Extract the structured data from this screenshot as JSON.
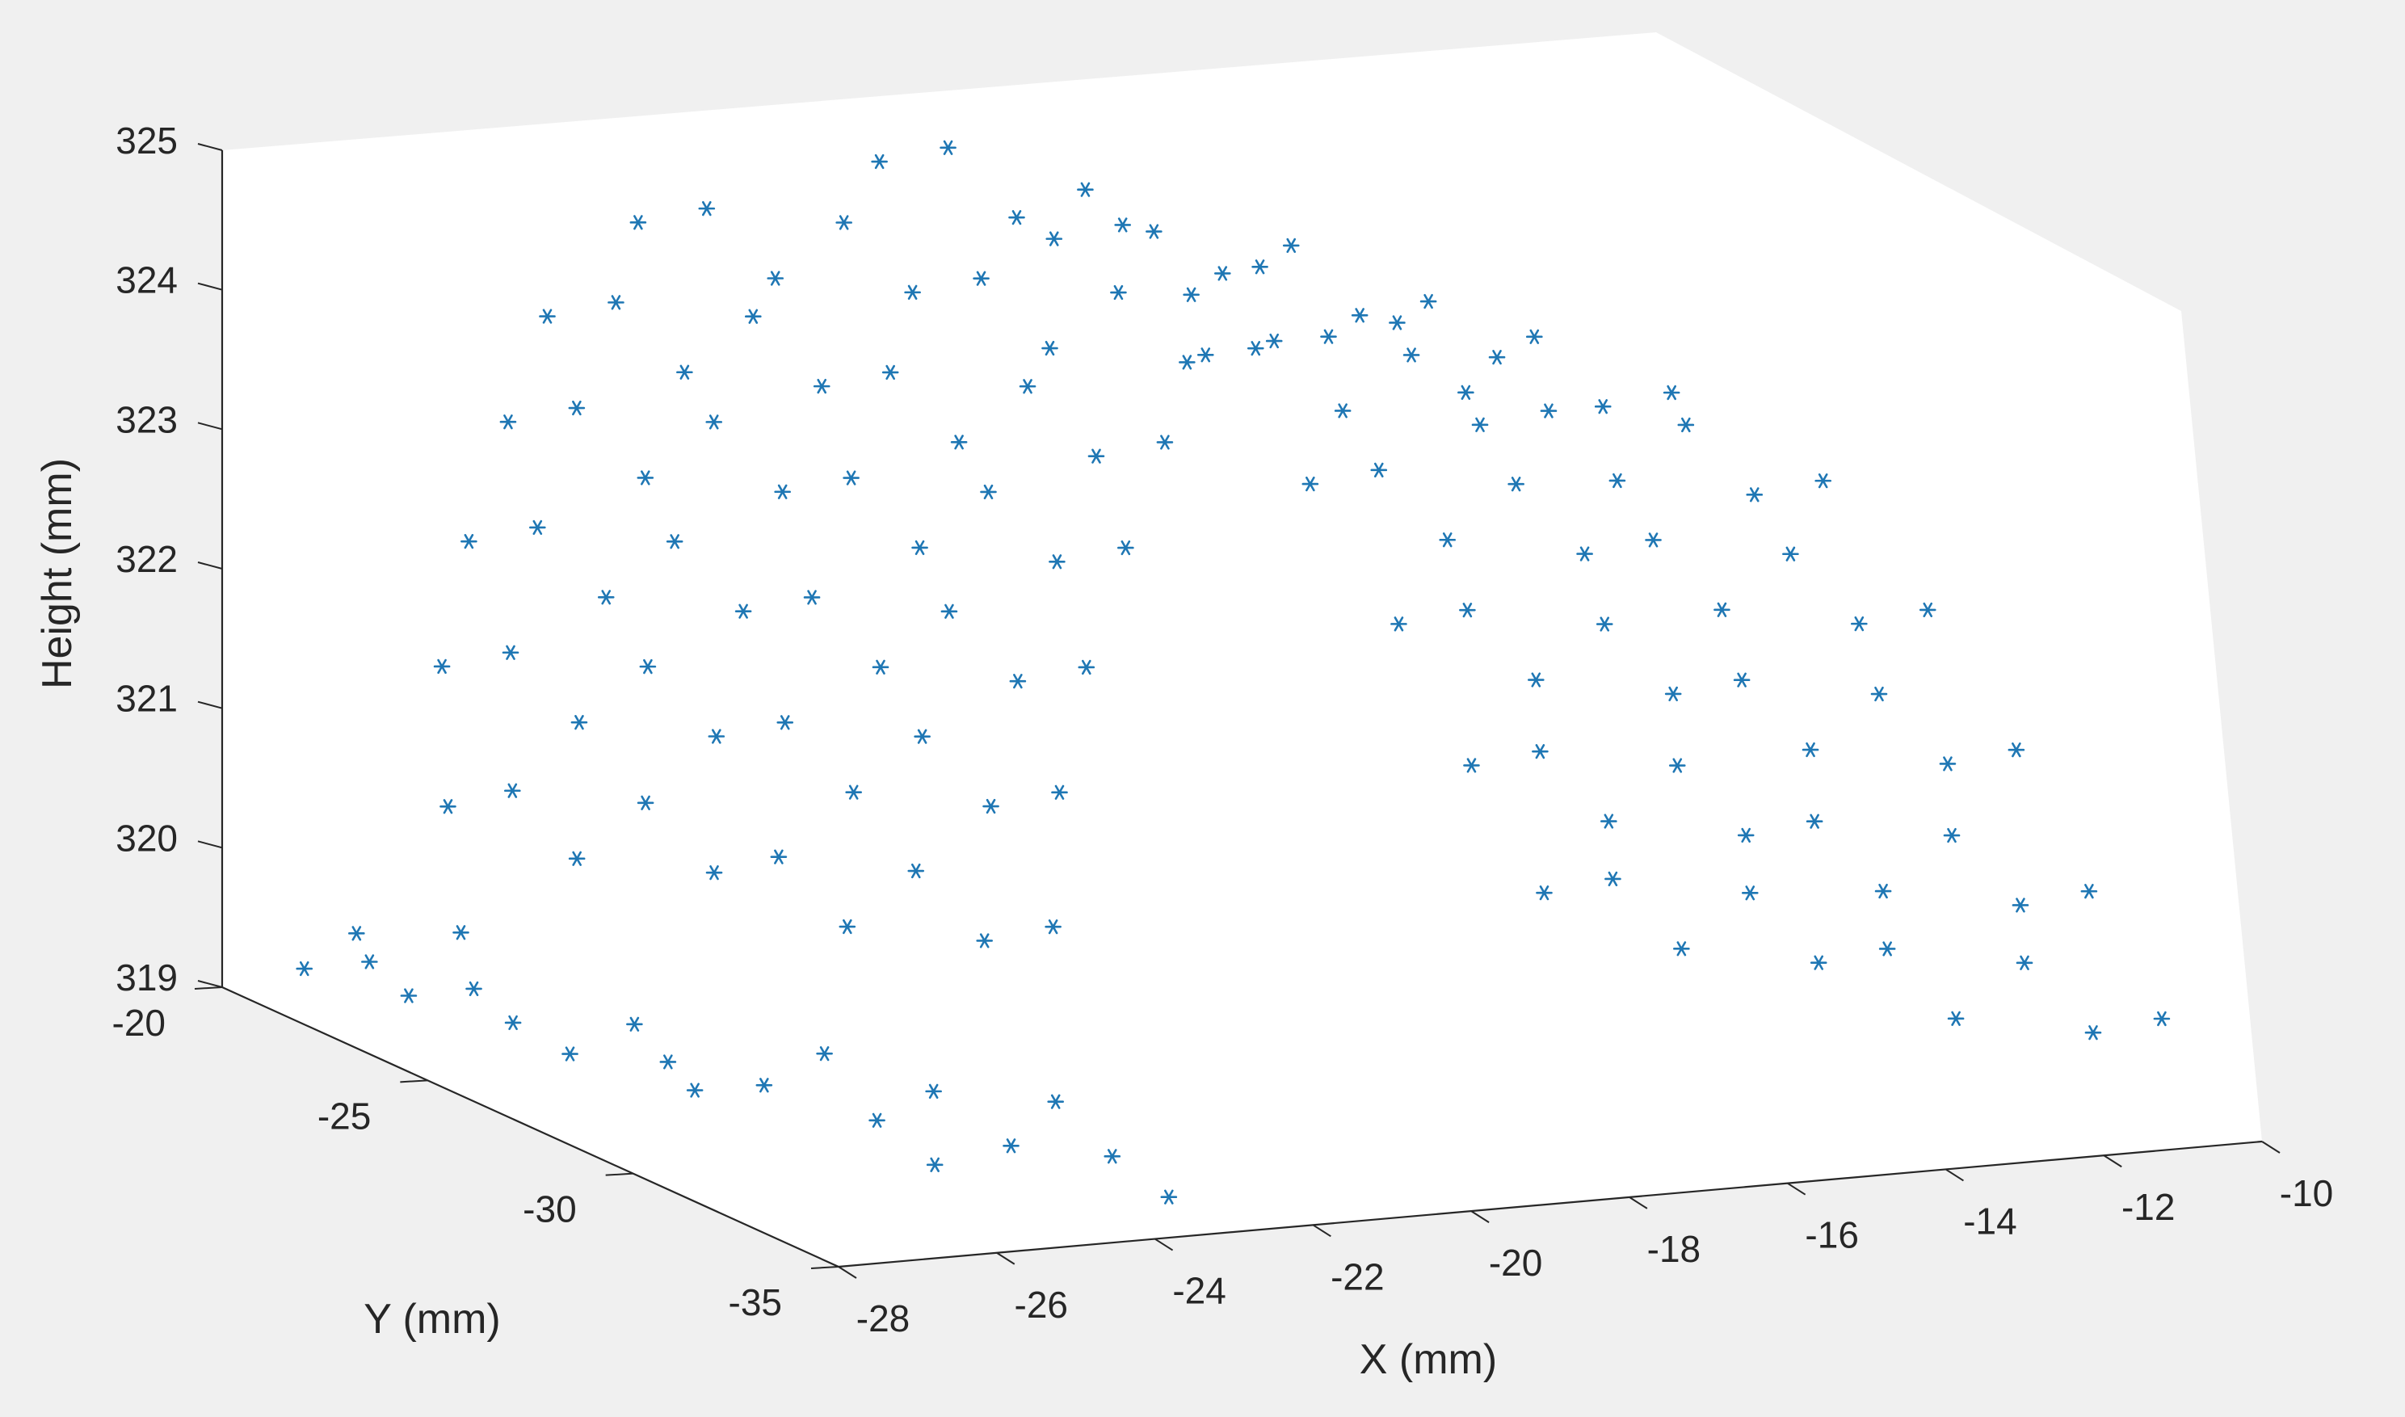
{
  "chart_data": {
    "type": "scatter3d",
    "marker": "asterisk",
    "color": "#1f77b4",
    "background": "#f0f0f0",
    "xlabel": "X (mm)",
    "ylabel": "Y (mm)",
    "zlabel": "Height (mm)",
    "xlim": [
      -28,
      -10
    ],
    "ylim": [
      -35,
      -20
    ],
    "zlim": [
      319,
      325
    ],
    "xticks": [
      -28,
      -26,
      -24,
      -22,
      -20,
      -18,
      -16,
      -14,
      -12,
      -10
    ],
    "yticks": [
      -20,
      -25,
      -30,
      -35
    ],
    "zticks": [
      319,
      320,
      321,
      322,
      323,
      324,
      325
    ],
    "grid": false,
    "points": [
      [
        -28.0,
        -22.0,
        319.4
      ],
      [
        -27.6,
        -22.5,
        319.7
      ],
      [
        -27.2,
        -23.0,
        319.3
      ],
      [
        -26.8,
        -23.5,
        319.8
      ],
      [
        -26.4,
        -24.0,
        319.2
      ],
      [
        -27.8,
        -23.2,
        319.6
      ],
      [
        -27.0,
        -24.2,
        319.5
      ],
      [
        -26.2,
        -25.0,
        319.1
      ],
      [
        -25.8,
        -25.8,
        319.4
      ],
      [
        -25.4,
        -26.5,
        319.0
      ],
      [
        -26.0,
        -27.0,
        319.3
      ],
      [
        -25.2,
        -27.8,
        319.2
      ],
      [
        -24.8,
        -28.5,
        319.5
      ],
      [
        -24.5,
        -29.2,
        319.1
      ],
      [
        -24.2,
        -30.0,
        319.4
      ],
      [
        -24.6,
        -30.8,
        319.0
      ],
      [
        -24.0,
        -31.5,
        319.2
      ],
      [
        -23.8,
        -32.2,
        319.6
      ],
      [
        -23.5,
        -33.0,
        319.3
      ],
      [
        -23.2,
        -33.8,
        319.1
      ],
      [
        -26.6,
        -22.8,
        320.6
      ],
      [
        -26.2,
        -23.6,
        320.8
      ],
      [
        -25.8,
        -24.4,
        320.4
      ],
      [
        -25.4,
        -25.3,
        320.9
      ],
      [
        -25.0,
        -26.2,
        320.5
      ],
      [
        -24.6,
        -27.0,
        320.7
      ],
      [
        -24.2,
        -27.9,
        320.3
      ],
      [
        -23.8,
        -28.8,
        320.8
      ],
      [
        -23.4,
        -29.7,
        320.4
      ],
      [
        -23.0,
        -30.6,
        320.6
      ],
      [
        -26.0,
        -21.5,
        321.4
      ],
      [
        -25.6,
        -22.4,
        321.6
      ],
      [
        -25.2,
        -23.3,
        321.2
      ],
      [
        -24.8,
        -24.2,
        321.7
      ],
      [
        -24.4,
        -25.1,
        321.3
      ],
      [
        -24.0,
        -26.0,
        321.5
      ],
      [
        -23.6,
        -26.9,
        321.1
      ],
      [
        -23.2,
        -27.8,
        321.6
      ],
      [
        -22.8,
        -28.7,
        321.2
      ],
      [
        -22.4,
        -29.6,
        321.4
      ],
      [
        -25.4,
        -21.0,
        322.2
      ],
      [
        -25.0,
        -21.9,
        322.4
      ],
      [
        -24.6,
        -22.8,
        322.0
      ],
      [
        -24.2,
        -23.7,
        322.5
      ],
      [
        -23.8,
        -24.6,
        322.1
      ],
      [
        -23.4,
        -25.5,
        322.3
      ],
      [
        -23.0,
        -26.4,
        321.9
      ],
      [
        -22.6,
        -27.3,
        322.4
      ],
      [
        -22.2,
        -28.2,
        322.0
      ],
      [
        -21.8,
        -29.1,
        322.2
      ],
      [
        -24.8,
        -20.8,
        323.0
      ],
      [
        -24.4,
        -21.7,
        323.2
      ],
      [
        -24.0,
        -22.6,
        322.8
      ],
      [
        -23.6,
        -23.5,
        323.3
      ],
      [
        -23.2,
        -24.4,
        322.9
      ],
      [
        -22.8,
        -25.3,
        323.1
      ],
      [
        -22.4,
        -26.2,
        322.7
      ],
      [
        -22.0,
        -27.1,
        323.2
      ],
      [
        -21.6,
        -28.0,
        322.8
      ],
      [
        -21.2,
        -28.9,
        323.0
      ],
      [
        -24.2,
        -20.6,
        323.7
      ],
      [
        -23.8,
        -21.5,
        323.9
      ],
      [
        -23.4,
        -22.4,
        323.5
      ],
      [
        -23.0,
        -23.3,
        324.0
      ],
      [
        -22.6,
        -24.2,
        323.6
      ],
      [
        -22.2,
        -25.1,
        323.8
      ],
      [
        -21.8,
        -26.0,
        323.4
      ],
      [
        -21.4,
        -26.9,
        323.9
      ],
      [
        -21.0,
        -27.8,
        323.5
      ],
      [
        -20.6,
        -28.7,
        323.7
      ],
      [
        -23.0,
        -20.5,
        324.3
      ],
      [
        -22.6,
        -21.4,
        324.5
      ],
      [
        -22.2,
        -22.3,
        324.1
      ],
      [
        -21.8,
        -23.2,
        324.6
      ],
      [
        -21.4,
        -24.1,
        324.2
      ],
      [
        -21.0,
        -25.0,
        324.4
      ],
      [
        -20.6,
        -25.9,
        324.0
      ],
      [
        -20.2,
        -26.8,
        324.5
      ],
      [
        -19.8,
        -27.7,
        324.1
      ],
      [
        -19.4,
        -28.6,
        324.3
      ],
      [
        -20.0,
        -20.6,
        324.6
      ],
      [
        -19.6,
        -21.5,
        324.8
      ],
      [
        -19.2,
        -22.4,
        324.4
      ],
      [
        -18.8,
        -23.3,
        324.7
      ],
      [
        -18.4,
        -24.2,
        324.5
      ],
      [
        -18.0,
        -25.1,
        324.3
      ],
      [
        -17.6,
        -26.0,
        324.6
      ],
      [
        -17.2,
        -26.9,
        324.2
      ],
      [
        -16.8,
        -27.8,
        324.4
      ],
      [
        -16.4,
        -28.7,
        324.1
      ],
      [
        -18.0,
        -21.0,
        324.0
      ],
      [
        -17.6,
        -21.9,
        324.2
      ],
      [
        -17.2,
        -22.8,
        323.8
      ],
      [
        -16.8,
        -23.7,
        324.1
      ],
      [
        -16.4,
        -24.6,
        323.7
      ],
      [
        -16.0,
        -25.5,
        323.9
      ],
      [
        -15.6,
        -26.4,
        323.5
      ],
      [
        -15.2,
        -27.3,
        324.0
      ],
      [
        -14.8,
        -28.2,
        323.6
      ],
      [
        -14.4,
        -29.1,
        323.8
      ],
      [
        -16.5,
        -21.8,
        323.2
      ],
      [
        -16.1,
        -22.7,
        323.4
      ],
      [
        -15.7,
        -23.6,
        323.0
      ],
      [
        -15.3,
        -24.5,
        323.5
      ],
      [
        -14.9,
        -25.4,
        323.1
      ],
      [
        -14.5,
        -26.3,
        323.3
      ],
      [
        -14.1,
        -27.2,
        322.9
      ],
      [
        -13.7,
        -28.1,
        323.4
      ],
      [
        -13.3,
        -29.0,
        323.0
      ],
      [
        -12.9,
        -29.9,
        323.2
      ],
      [
        -15.8,
        -23.0,
        322.4
      ],
      [
        -15.4,
        -23.9,
        322.6
      ],
      [
        -15.0,
        -24.8,
        322.2
      ],
      [
        -14.6,
        -25.7,
        322.7
      ],
      [
        -14.2,
        -26.6,
        322.3
      ],
      [
        -13.8,
        -27.5,
        322.5
      ],
      [
        -13.4,
        -28.4,
        322.1
      ],
      [
        -13.0,
        -29.3,
        322.6
      ],
      [
        -12.6,
        -30.2,
        322.2
      ],
      [
        -12.2,
        -31.1,
        322.4
      ],
      [
        -15.2,
        -24.0,
        321.5
      ],
      [
        -14.8,
        -24.9,
        321.7
      ],
      [
        -14.4,
        -25.8,
        321.3
      ],
      [
        -14.0,
        -26.7,
        321.8
      ],
      [
        -13.6,
        -27.6,
        321.4
      ],
      [
        -13.2,
        -28.5,
        321.6
      ],
      [
        -12.8,
        -29.4,
        321.2
      ],
      [
        -12.4,
        -30.3,
        321.7
      ],
      [
        -12.0,
        -31.2,
        321.3
      ],
      [
        -11.6,
        -32.1,
        321.5
      ],
      [
        -14.8,
        -25.0,
        320.6
      ],
      [
        -14.4,
        -25.9,
        320.8
      ],
      [
        -14.0,
        -26.8,
        320.4
      ],
      [
        -13.6,
        -27.7,
        320.9
      ],
      [
        -13.2,
        -28.6,
        320.5
      ],
      [
        -12.8,
        -29.5,
        320.7
      ],
      [
        -12.4,
        -30.4,
        320.3
      ],
      [
        -12.0,
        -31.3,
        320.8
      ],
      [
        -11.6,
        -32.2,
        320.4
      ],
      [
        -11.2,
        -33.1,
        320.6
      ],
      [
        -14.4,
        -26.0,
        319.8
      ],
      [
        -14.0,
        -26.9,
        320.0
      ],
      [
        -13.6,
        -27.8,
        319.6
      ],
      [
        -13.2,
        -28.7,
        320.1
      ],
      [
        -12.8,
        -29.6,
        319.7
      ],
      [
        -12.4,
        -30.5,
        319.9
      ],
      [
        -12.0,
        -31.4,
        319.5
      ],
      [
        -11.6,
        -32.3,
        320.0
      ],
      [
        -11.2,
        -33.2,
        319.6
      ],
      [
        -10.8,
        -34.1,
        319.8
      ]
    ]
  }
}
